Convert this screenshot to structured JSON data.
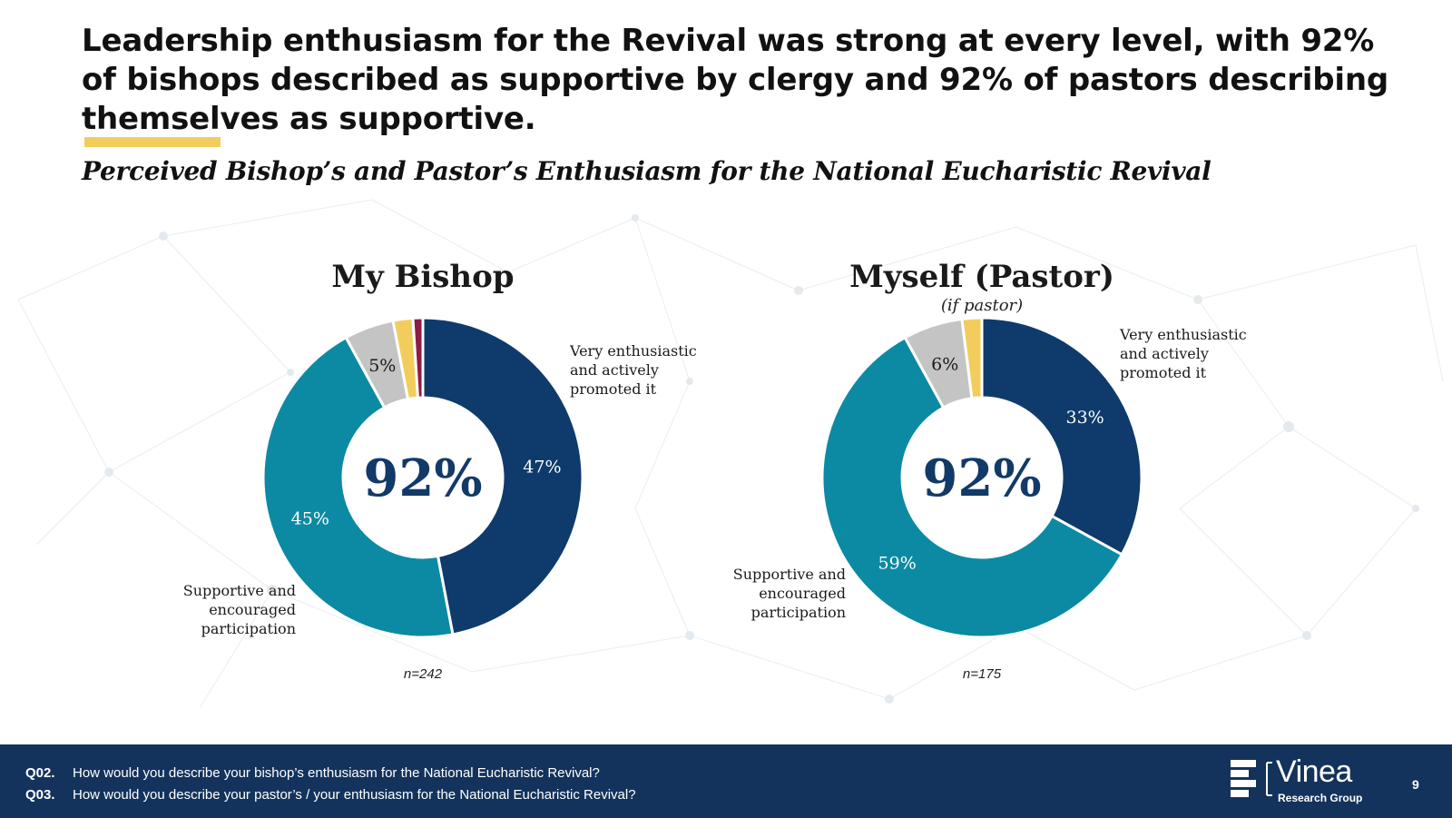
{
  "headline": "Leadership enthusiasm for the Revival was strong at every level, with 92% of bishops described as supportive by clergy and 92% of pastors describing themselves as supportive.",
  "subtitle": "Perceived Bishop’s and Pastor’s Enthusiasm for the National Eucharistic Revival",
  "colors": {
    "navy": "#0e3b6b",
    "teal": "#0c8aa3",
    "gray": "#c4c4c4",
    "yellow": "#f2cd5c",
    "maroon": "#8d1a47",
    "footer": "#13335c",
    "accent": "#f2cd5c",
    "center_text": "#123a68"
  },
  "chart_data": [
    {
      "type": "pie",
      "donut": true,
      "title": "My Bishop",
      "subnote": "",
      "center_label": "92%",
      "n_label": "n=242",
      "slices": [
        {
          "category": "Very enthusiastic and actively promoted it",
          "value": 47,
          "label": "47%",
          "color": "#0e3b6b",
          "label_color": "#ffffff"
        },
        {
          "category": "Supportive and encouraged participation",
          "value": 45,
          "label": "45%",
          "color": "#0c8aa3",
          "label_color": "#ffffff"
        },
        {
          "category": "",
          "value": 5,
          "label": "5%",
          "color": "#c4c4c4",
          "label_color": "#1a1a1a"
        },
        {
          "category": "",
          "value": 2,
          "label": "",
          "color": "#f2cd5c",
          "label_color": "#1a1a1a"
        },
        {
          "category": "",
          "value": 1,
          "label": "",
          "color": "#8d1a47",
          "label_color": "#1a1a1a"
        }
      ],
      "annotations": [
        {
          "lines": [
            "Very enthusiastic",
            "and actively",
            "promoted it"
          ],
          "align": "start"
        },
        {
          "lines": [
            "Supportive and",
            "encouraged",
            "participation"
          ],
          "align": "end"
        }
      ]
    },
    {
      "type": "pie",
      "donut": true,
      "title": "Myself (Pastor)",
      "subnote": "(if pastor)",
      "center_label": "92%",
      "n_label": "n=175",
      "slices": [
        {
          "category": "Very enthusiastic and actively promoted it",
          "value": 33,
          "label": "33%",
          "color": "#0e3b6b",
          "label_color": "#ffffff"
        },
        {
          "category": "Supportive and encouraged participation",
          "value": 59,
          "label": "59%",
          "color": "#0c8aa3",
          "label_color": "#ffffff"
        },
        {
          "category": "",
          "value": 6,
          "label": "6%",
          "color": "#c4c4c4",
          "label_color": "#1a1a1a"
        },
        {
          "category": "",
          "value": 2,
          "label": "",
          "color": "#f2cd5c",
          "label_color": "#1a1a1a"
        }
      ],
      "annotations": [
        {
          "lines": [
            "Very enthusiastic",
            "and actively",
            "promoted it"
          ],
          "align": "start"
        },
        {
          "lines": [
            "Supportive and",
            "encouraged",
            "participation"
          ],
          "align": "end"
        }
      ]
    }
  ],
  "footer": {
    "questions": [
      {
        "code": "Q02.",
        "text": "How would you describe your bishop’s enthusiasm for the National Eucharistic Revival?"
      },
      {
        "code": "Q03.",
        "text": "How would you describe your pastor’s / your enthusiasm for the National Eucharistic Revival?"
      }
    ],
    "logo_name": "Vinea",
    "logo_sub": "Research Group",
    "page_number": "9"
  }
}
